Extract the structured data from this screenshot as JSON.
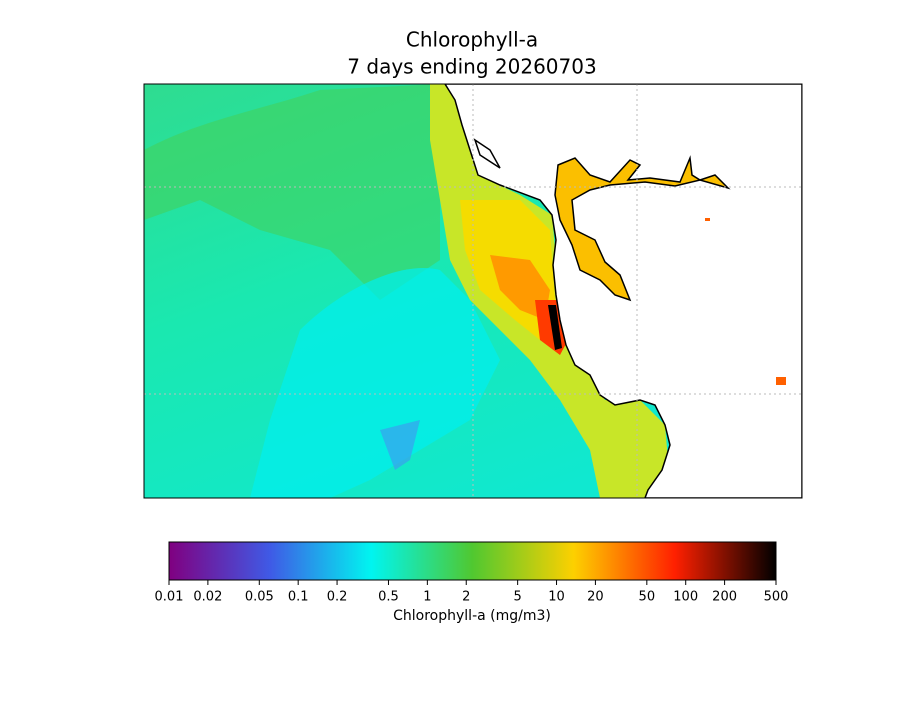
{
  "chart_data": {
    "type": "map",
    "title": "Chlorophyll-a",
    "subtitle": "7 days ending 20260703",
    "colorbar": {
      "label": "Chlorophyll-a (mg/m3)",
      "log_scale": true,
      "lim": [
        0.01,
        500
      ],
      "ticks": [
        0.01,
        0.02,
        0.05,
        0.1,
        0.2,
        0.5,
        1,
        2,
        5,
        10,
        20,
        50,
        100,
        200,
        500
      ],
      "colors": [
        "#800080",
        "#3f5ae6",
        "#00f5f0",
        "#50c830",
        "#fdd000",
        "#ff2000",
        "#000000"
      ]
    }
  }
}
